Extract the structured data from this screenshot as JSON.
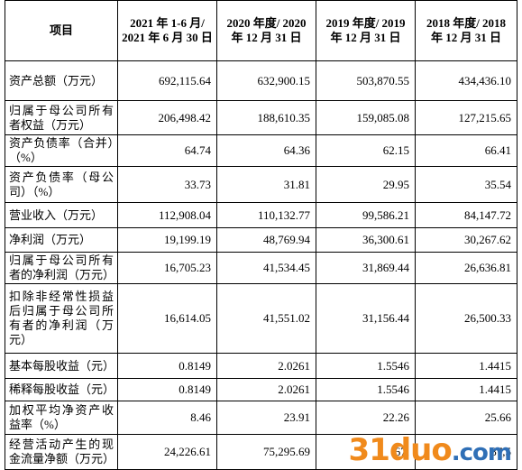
{
  "table": {
    "header": [
      "项目",
      "2021 年 1-6 月/ 2021 年 6 月 30 日",
      "2020 年度/ 2020 年 12 月 31 日",
      "2019 年度/ 2019 年 12 月 31 日",
      "2018 年度/ 2018 年 12 月 31 日"
    ],
    "rows": [
      [
        "资产总额（万元）",
        "692,115.64",
        "632,900.15",
        "503,870.55",
        "434,436.10"
      ],
      [
        "归属于母公司所有者权益（万元）",
        "206,498.42",
        "188,610.35",
        "159,085.08",
        "127,215.65"
      ],
      [
        "资产负债率（合并）（%）",
        "64.74",
        "64.36",
        "62.15",
        "66.41"
      ],
      [
        "资产负债率（母公司）（%）",
        "33.73",
        "31.81",
        "29.95",
        "35.54"
      ],
      [
        "营业收入（万元）",
        "112,908.04",
        "110,132.77",
        "99,586.21",
        "84,147.72"
      ],
      [
        "净利润（万元）",
        "19,199.19",
        "48,769.94",
        "36,300.61",
        "30,267.62"
      ],
      [
        "归属于母公司所有者的净利润（万元）",
        "16,705.23",
        "41,534.45",
        "31,869.44",
        "26,636.81"
      ],
      [
        "扣除非经常性损益后归属于母公司所有者的净利润（万元）",
        "16,614.05",
        "41,551.02",
        "31,156.44",
        "26,500.33"
      ],
      [
        "基本每股收益（元）",
        "0.8149",
        "2.0261",
        "1.5546",
        "1.4415"
      ],
      [
        "稀释每股收益（元）",
        "0.8149",
        "2.0261",
        "1.5546",
        "1.4415"
      ],
      [
        "加权平均净资产收益率（%）",
        "8.46",
        "23.91",
        "22.26",
        "25.66"
      ],
      [
        "经营活动产生的现金流量净额（万元）",
        "24,226.61",
        "75,295.69",
        "67,",
        "87,5"
      ]
    ]
  },
  "watermark": {
    "main": "31duo",
    "suffix": ".com"
  }
}
